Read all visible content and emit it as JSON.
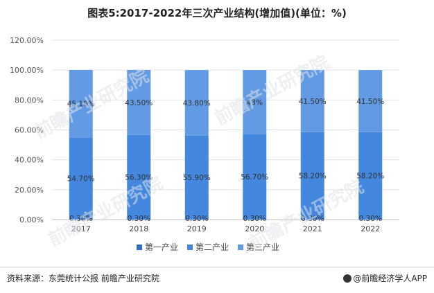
{
  "title": "图表5:2017-2022年三次产业结构(增加值)(单位：%)",
  "source_text": "资料来源：东莞统计公报 前瞻产业研究院",
  "brand_text": "@前瞻经济学人APP",
  "watermark_text": "前瞻产业研究院",
  "chart_data": {
    "type": "bar",
    "stacked": true,
    "categories": [
      "2017",
      "2018",
      "2019",
      "2020",
      "2021",
      "2022"
    ],
    "y_ticks": [
      "0.00%",
      "20.00%",
      "40.00%",
      "60.00%",
      "80.00%",
      "100.00%",
      "120.00%"
    ],
    "ylim": [
      0,
      120
    ],
    "grid": true,
    "legend_position": "bottom",
    "series": [
      {
        "name": "第一产业",
        "color": "#2e6fcb",
        "values": [
          0.3,
          0.3,
          0.3,
          0.3,
          0.3,
          0.3
        ],
        "labels": [
          "0.30%",
          "0.30%",
          "0.30%",
          "0.30%",
          "0.30%",
          "0.30%"
        ]
      },
      {
        "name": "第二产业",
        "color": "#4387df",
        "values": [
          54.7,
          56.3,
          55.9,
          56.7,
          58.2,
          58.2
        ],
        "labels": [
          "54.70%",
          "56.30%",
          "55.90%",
          "56.70%",
          "58.20%",
          "58.20%"
        ]
      },
      {
        "name": "第三产业",
        "color": "#629ae4",
        "values": [
          45.1,
          43.5,
          43.8,
          43,
          41.5,
          41.5
        ],
        "labels": [
          "45.10%",
          "43.50%",
          "43.80%",
          "43%",
          "41.50%",
          "41.50%"
        ]
      }
    ]
  }
}
